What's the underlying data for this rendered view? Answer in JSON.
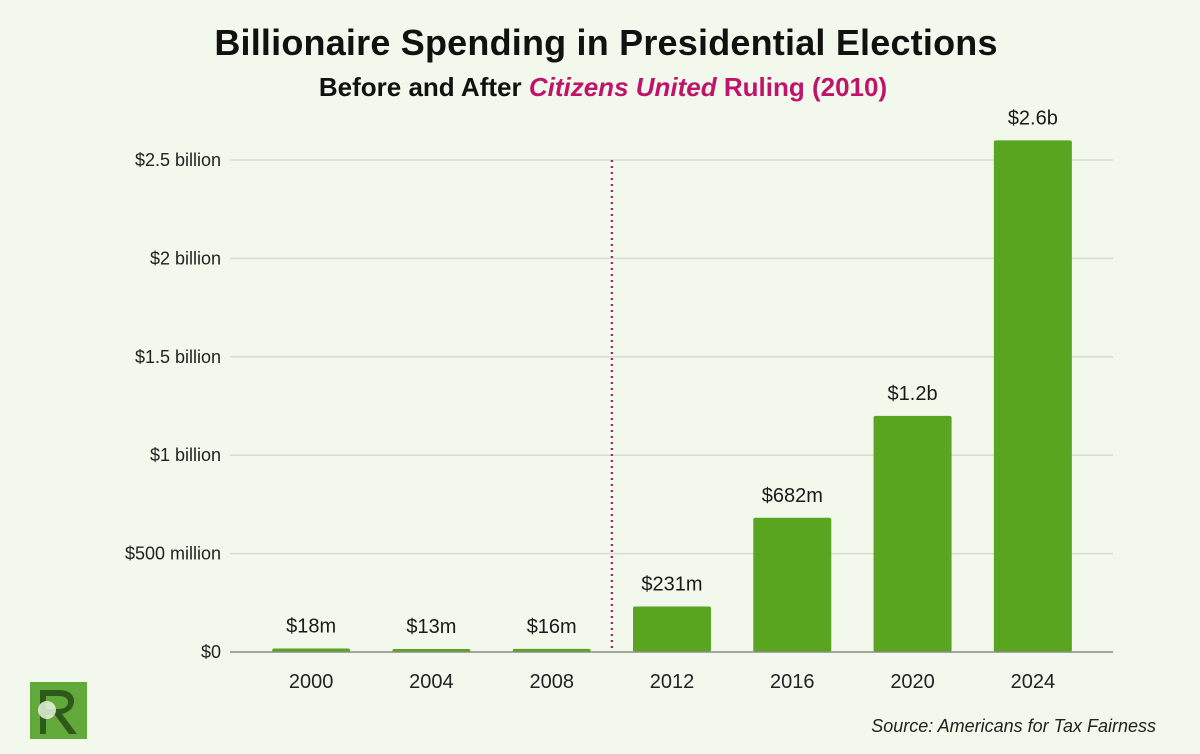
{
  "header": {
    "title": "Billionaire Spending in Presidential Elections",
    "subtitle_before": "Before and After ",
    "subtitle_italic": "Citizens United",
    "subtitle_after": " Ruling (2010)"
  },
  "source": "Source: Americans for Tax Fairness",
  "colors": {
    "background": "#f2f8ec",
    "bar": "#5aa51f",
    "accent": "#c0146b",
    "grid": "#d7ddd2",
    "axis": "#8a8a8a",
    "logo": "#62a93b"
  },
  "logo": {
    "icon": "r-logo-icon",
    "letter": "R"
  },
  "chart_data": {
    "type": "bar",
    "title": "Billionaire Spending in Presidential Elections",
    "subtitle": "Before and After Citizens United Ruling (2010)",
    "categories": [
      "2000",
      "2004",
      "2008",
      "2012",
      "2016",
      "2020",
      "2024"
    ],
    "values": [
      18000000,
      13000000,
      16000000,
      231000000,
      682000000,
      1200000000,
      2600000000
    ],
    "data_labels": [
      "$18m",
      "$13m",
      "$16m",
      "$231m",
      "$682m",
      "$1.2b",
      "$2.6b"
    ],
    "xlabel": "",
    "ylabel": "",
    "ylim": [
      0,
      2500000000
    ],
    "yticks": [
      0,
      500000000,
      1000000000,
      1500000000,
      2000000000,
      2500000000
    ],
    "ytick_labels": [
      "$0",
      "$500 million",
      "$1 billion",
      "$1.5 billion",
      "$2 billion",
      "$2.5 billion"
    ],
    "grid": true,
    "legend": "none",
    "annotations": [
      {
        "type": "vertical-dotted-line",
        "between": [
          "2008",
          "2012"
        ],
        "year": 2010,
        "color": "#c0146b"
      }
    ]
  }
}
